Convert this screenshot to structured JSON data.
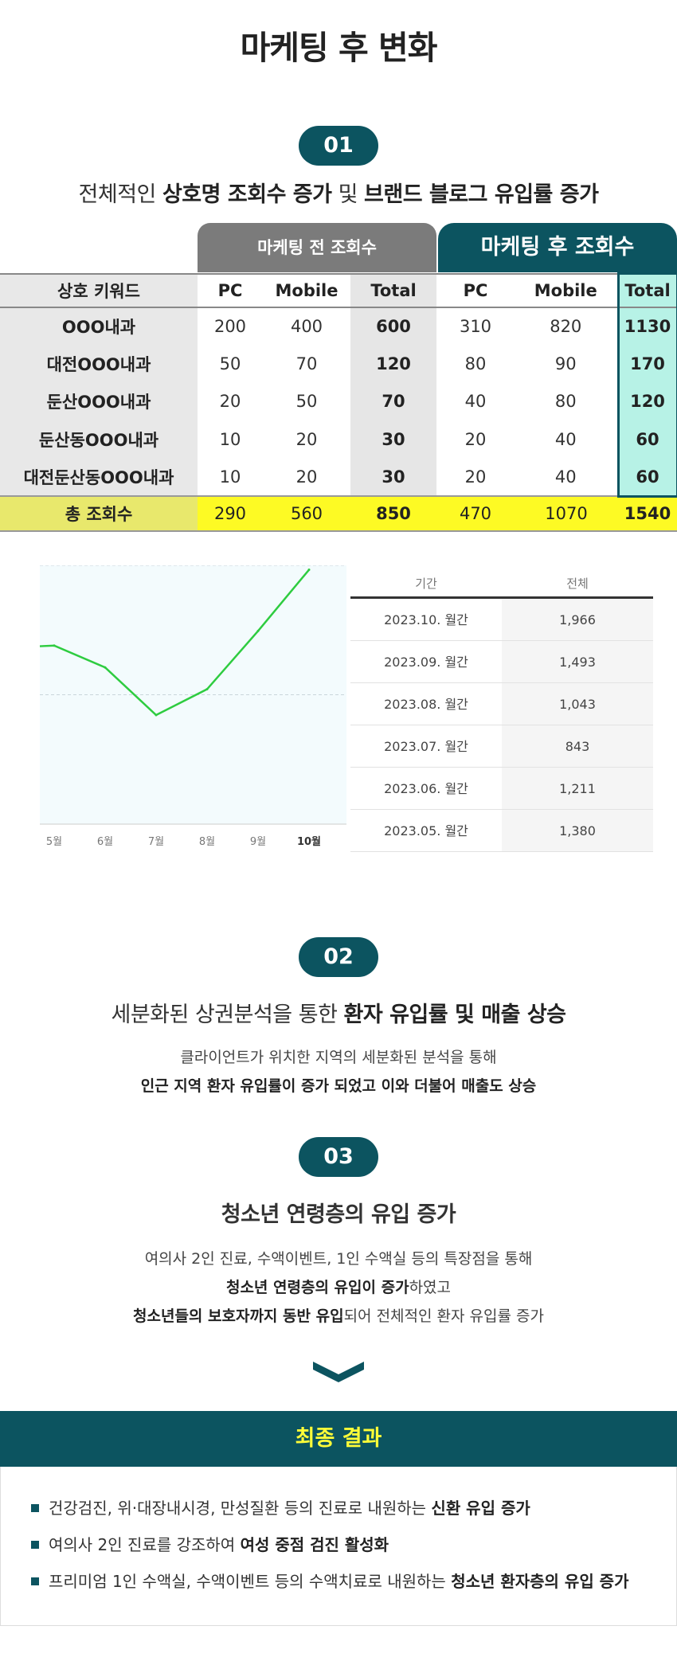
{
  "title": "마케팅 후 변화",
  "section1": {
    "badge": "01",
    "subtitle_plain": "전체적인 ",
    "subtitle_bold1": "상호명 조회수 증가",
    "subtitle_mid": " 및 ",
    "subtitle_bold2": "브랜드 블로그 유입률 증가"
  },
  "table": {
    "before_label": "마케팅 전 조회수",
    "after_label": "마케팅 후 조회수",
    "columns": [
      "상호 키워드",
      "PC",
      "Mobile",
      "Total",
      "PC",
      "Mobile",
      "Total"
    ],
    "rows": [
      [
        "OOO내과",
        "200",
        "400",
        "600",
        "310",
        "820",
        "1130"
      ],
      [
        "대전OOO내과",
        "50",
        "70",
        "120",
        "80",
        "90",
        "170"
      ],
      [
        "둔산OOO내과",
        "20",
        "50",
        "70",
        "40",
        "80",
        "120"
      ],
      [
        "둔산동OOO내과",
        "10",
        "20",
        "30",
        "20",
        "40",
        "60"
      ],
      [
        "대전둔산동OOO내과",
        "10",
        "20",
        "30",
        "20",
        "40",
        "60"
      ]
    ],
    "sum": [
      "총 조회수",
      "290",
      "560",
      "850",
      "470",
      "1070",
      "1540"
    ]
  },
  "chart_data": {
    "type": "line",
    "categories": [
      "5월",
      "6월",
      "7월",
      "8월",
      "9월",
      "10월"
    ],
    "series": [
      {
        "values": [
          1380,
          1211,
          843,
          1043,
          1493,
          1966
        ]
      }
    ],
    "ylim": [
      0,
      2000
    ],
    "grid": true,
    "colors": {
      "line": "#2ecc40",
      "bg": "#f3fbfd"
    }
  },
  "stats": {
    "col_period": "기간",
    "col_total": "전체",
    "rows": [
      {
        "period": "2023.10. 월간",
        "value": "1,966"
      },
      {
        "period": "2023.09. 월간",
        "value": "1,493"
      },
      {
        "period": "2023.08. 월간",
        "value": "1,043"
      },
      {
        "period": "2023.07. 월간",
        "value": "843"
      },
      {
        "period": "2023.06. 월간",
        "value": "1,211"
      },
      {
        "period": "2023.05. 월간",
        "value": "1,380"
      }
    ]
  },
  "section2": {
    "badge": "02",
    "subtitle_plain": "세분화된 상권분석을 통한 ",
    "subtitle_bold": "환자 유입률 및 매출 상승",
    "line1": "클라이언트가 위치한 지역의 세분화된 분석을 통해",
    "line2_bold": "인근 지역 환자 유입률이 증가 되었고 이와 더불어 매출도 상승"
  },
  "section3": {
    "badge": "03",
    "subtitle": "청소년 연령층의 유입 증가",
    "line1": "여의사 2인 진료, 수액이벤트, 1인 수액실 등의 특장점을 통해",
    "line2_bold": "청소년 연령층의 유입이 증가",
    "line2_plain": "하였고",
    "line3_bold": "청소년들의 보호자까지 동반 유입",
    "line3_plain": "되어 전체적인 환자 유입률 증가"
  },
  "final": {
    "title": "최종 결과",
    "items": [
      {
        "plain": "건강검진, 위·대장내시경, 만성질환 등의 진료로 내원하는 ",
        "bold": "신환 유입 증가"
      },
      {
        "plain": "여의사 2인 진료를 강조하여 ",
        "bold": "여성 중점 검진 활성화"
      },
      {
        "plain": "프리미엄 1인 수액실, 수액이벤트 등의 수액치료로 내원하는 ",
        "bold": "청소년 환자층의 유입 증가"
      }
    ]
  },
  "colors": {
    "accent": "#0c5460",
    "highlight": "#fdfa24",
    "after_total": "#b7f2e6",
    "final_title": "#fffd38"
  }
}
